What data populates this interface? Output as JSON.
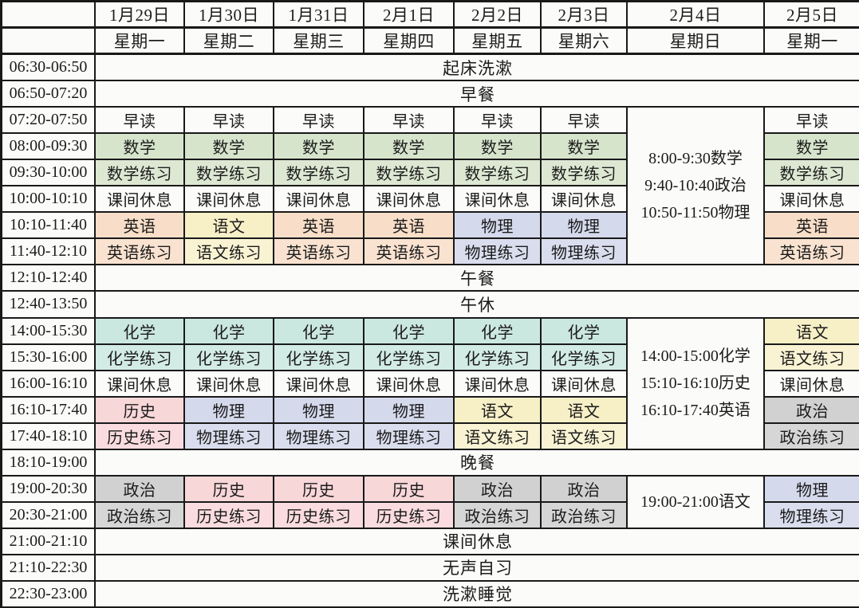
{
  "table": {
    "corner": "",
    "dates": [
      "1月29日",
      "1月30日",
      "1月31日",
      "2月1日",
      "2月2日",
      "2月3日",
      "2月4日",
      "2月5日"
    ],
    "weekdays": [
      "星期一",
      "星期二",
      "星期三",
      "星期四",
      "星期五",
      "星期六",
      "星期日",
      "星期一"
    ],
    "rows": [
      {
        "time": "06:30-06:50",
        "kind": "span",
        "label": "起床洗漱"
      },
      {
        "time": "06:50-07:20",
        "kind": "span",
        "label": "早餐"
      },
      {
        "time": "07:20-07:50",
        "kind": "cells",
        "cells": [
          "早读",
          "早读",
          "早读",
          "早读",
          "早读",
          "早读",
          "早读"
        ]
      },
      {
        "time": "08:00-09:30",
        "kind": "cells",
        "cells": [
          "数学",
          "数学",
          "数学",
          "数学",
          "数学",
          "数学",
          "数学"
        ]
      },
      {
        "time": "09:30-10:00",
        "kind": "cells",
        "cells": [
          "数学练习",
          "数学练习",
          "数学练习",
          "数学练习",
          "数学练习",
          "数学练习",
          "数学练习"
        ]
      },
      {
        "time": "10:00-10:10",
        "kind": "cells",
        "cells": [
          "课间休息",
          "课间休息",
          "课间休息",
          "课间休息",
          "课间休息",
          "课间休息",
          "课间休息"
        ]
      },
      {
        "time": "10:10-11:40",
        "kind": "cells",
        "cells": [
          "英语",
          "语文",
          "英语",
          "英语",
          "物理",
          "物理",
          "英语"
        ]
      },
      {
        "time": "11:40-12:10",
        "kind": "cells",
        "cells": [
          "英语练习",
          "语文练习",
          "英语练习",
          "英语练习",
          "物理练习",
          "物理练习",
          "英语练习"
        ]
      },
      {
        "time": "12:10-12:40",
        "kind": "span",
        "label": "午餐"
      },
      {
        "time": "12:40-13:50",
        "kind": "span",
        "label": "午休"
      },
      {
        "time": "14:00-15:30",
        "kind": "cells",
        "cells": [
          "化学",
          "化学",
          "化学",
          "化学",
          "化学",
          "化学",
          "语文"
        ]
      },
      {
        "time": "15:30-16:00",
        "kind": "cells",
        "cells": [
          "化学练习",
          "化学练习",
          "化学练习",
          "化学练习",
          "化学练习",
          "化学练习",
          "语文练习"
        ]
      },
      {
        "time": "16:00-16:10",
        "kind": "cells",
        "cells": [
          "课间休息",
          "课间休息",
          "课间休息",
          "课间休息",
          "课间休息",
          "课间休息",
          "课间休息"
        ]
      },
      {
        "time": "16:10-17:40",
        "kind": "cells",
        "cells": [
          "历史",
          "物理",
          "物理",
          "物理",
          "语文",
          "语文",
          "政治"
        ]
      },
      {
        "time": "17:40-18:10",
        "kind": "cells",
        "cells": [
          "历史练习",
          "物理练习",
          "物理练习",
          "物理练习",
          "语文练习",
          "语文练习",
          "政治练习"
        ]
      },
      {
        "time": "18:10-19:00",
        "kind": "span",
        "label": "晚餐"
      },
      {
        "time": "19:00-20:30",
        "kind": "cells",
        "cells": [
          "政治",
          "历史",
          "历史",
          "历史",
          "政治",
          "政治",
          "物理"
        ]
      },
      {
        "time": "20:30-21:00",
        "kind": "cells",
        "cells": [
          "政治练习",
          "历史练习",
          "历史练习",
          "历史练习",
          "政治练习",
          "政治练习",
          "物理练习"
        ]
      },
      {
        "time": "21:00-21:10",
        "kind": "span",
        "label": "课间休息"
      },
      {
        "time": "21:10-22:30",
        "kind": "span",
        "label": "无声自习"
      },
      {
        "time": "22:30-23:00",
        "kind": "span",
        "label": "洗漱睡觉"
      }
    ],
    "sunday_blocks": [
      {
        "from": "07:20-07:50",
        "to": "11:40-12:10",
        "lines": [
          "8:00-9:30数学",
          "9:40-10:40政治",
          "10:50-11:50物理"
        ]
      },
      {
        "from": "14:00-15:30",
        "to": "17:40-18:10",
        "lines": [
          "14:00-15:00化学",
          "15:10-16:10历史",
          "16:10-17:40英语"
        ]
      },
      {
        "from": "19:00-20:30",
        "to": "20:30-21:00",
        "lines": [
          "19:00-21:00语文"
        ]
      }
    ]
  },
  "colors": {
    "border": "#191919",
    "text": "#1b1b1b",
    "cell_bg": "#fbfbf9",
    "subjects": {
      "早读": "#fbfbf9",
      "课间休息": "#fbfbf9",
      "数学": "#d6e4cc",
      "数学练习": "#dde8d3",
      "英语": "#f8dec8",
      "英语练习": "#f9e3d0",
      "语文": "#f7efc6",
      "语文练习": "#f9f3d3",
      "物理": "#d5d9ec",
      "物理练习": "#dadded",
      "化学": "#cbe8e0",
      "化学练习": "#d3ebe5",
      "历史": "#f8d7d9",
      "历史练习": "#fadce0",
      "政治": "#d2d1d1",
      "政治练习": "#d7d6d6"
    }
  }
}
